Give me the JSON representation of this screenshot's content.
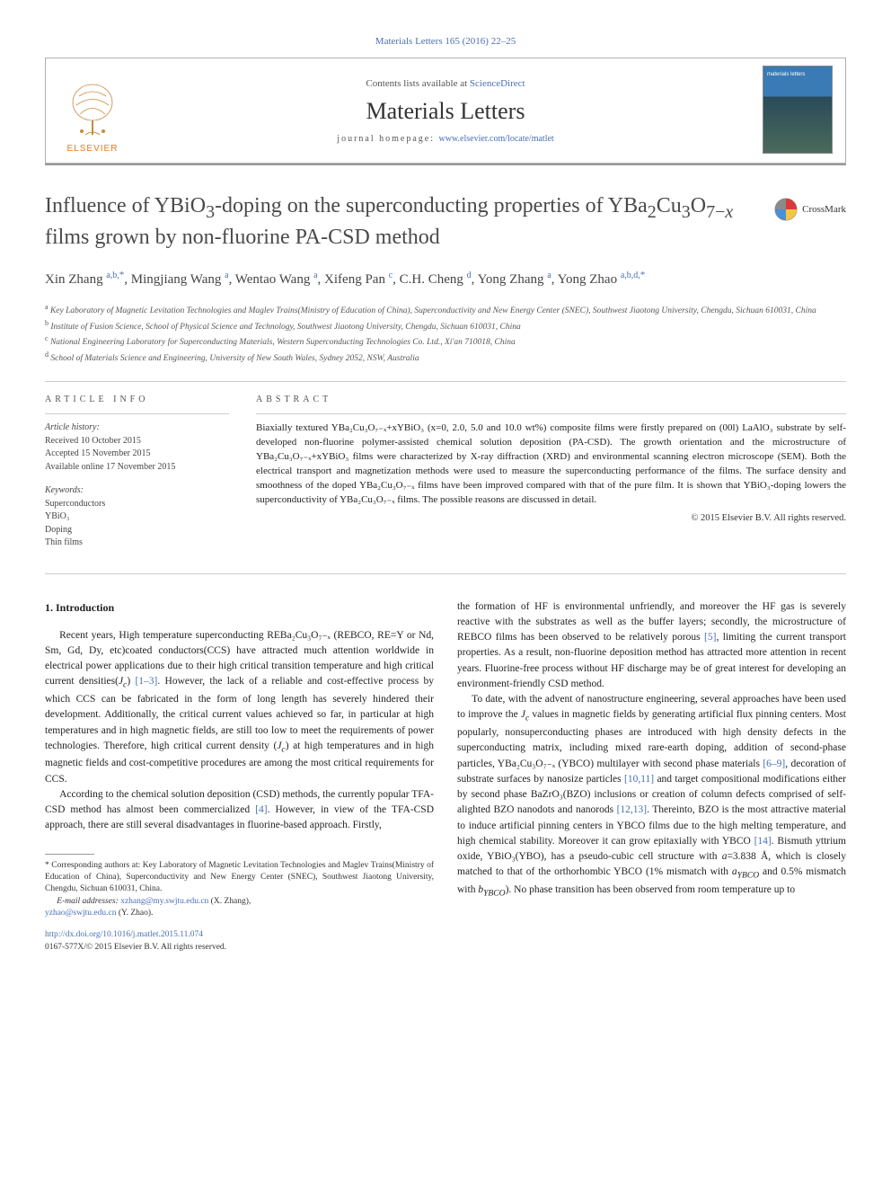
{
  "topnav": "Materials Letters 165 (2016) 22–25",
  "banner": {
    "contents_prefix": "Contents lists available at ",
    "contents_link": "ScienceDirect",
    "journal_name": "Materials Letters",
    "homepage_prefix": "journal homepage: ",
    "homepage_link": "www.elsevier.com/locate/matlet",
    "publisher_label": "ELSEVIER"
  },
  "crossmark_label": "CrossMark",
  "title_a": "Influence of YBiO",
  "title_b": "-doping on the superconducting properties of YBa",
  "title_c": "Cu",
  "title_d": "O",
  "title_e": " films grown by non-fluorine PA-CSD method",
  "authors_html": "Xin Zhang <span class='sup'>a,b,</span><span class='star'>*</span>, Mingjiang Wang <span class='sup'>a</span>, Wentao Wang <span class='sup'>a</span>, Xifeng Pan <span class='sup'>c</span>, C.H. Cheng <span class='sup'>d</span>, Yong Zhang <span class='sup'>a</span>, Yong Zhao <span class='sup'>a,b,d,</span><span class='star'>*</span>",
  "affiliations": {
    "a": "Key Laboratory of Magnetic Levitation Technologies and Maglev Trains(Ministry of Education of China), Superconductivity and New Energy Center (SNEC), Southwest Jiaotong University, Chengdu, Sichuan 610031, China",
    "b": "Institute of Fusion Science, School of Physical Science and Technology, Southwest Jiaotong University, Chengdu, Sichuan 610031, China",
    "c": "National Engineering Laboratory for Superconducting Materials, Western Superconducting Technologies Co. Ltd., Xi'an 710018, China",
    "d": "School of Materials Science and Engineering, University of New South Wales, Sydney 2052, NSW, Australia"
  },
  "info": {
    "label": "article info",
    "history_heading": "Article history:",
    "received": "Received 10 October 2015",
    "accepted": "Accepted 15 November 2015",
    "online": "Available online 17 November 2015",
    "keywords_heading": "Keywords:",
    "kw1": "Superconductors",
    "kw2": "YBiO₃",
    "kw3": "Doping",
    "kw4": "Thin films"
  },
  "abstract": {
    "label": "abstract",
    "text": "Biaxially textured YBa₂Cu₃O₇₋ₓ+xYBiO₃ (x=0, 2.0, 5.0 and 10.0 wt%) composite films were firstly prepared on (00l) LaAlO₃ substrate by self-developed non-fluorine polymer-assisted chemical solution deposition (PA-CSD). The growth orientation and the microstructure of YBa₂Cu₃O₇₋ₓ+xYBiO₃ films were characterized by X-ray diffraction (XRD) and environmental scanning electron microscope (SEM). Both the electrical transport and magnetization methods were used to measure the superconducting performance of the films. The surface density and smoothness of the doped YBa₂Cu₃O₇₋ₓ films have been improved compared with that of the pure film. It is shown that YBiO₃-doping lowers the superconductivity of YBa₂Cu₃O₇₋ₓ films. The possible reasons are discussed in detail.",
    "copyright": "© 2015 Elsevier B.V. All rights reserved."
  },
  "intro_heading": "1.  Introduction",
  "colL_p1a": "Recent years, High temperature superconducting REBa₂Cu₃O₇₋ₓ (REBCO, RE=Y or Nd, Sm, Gd, Dy, etc)coated conductors(CCS) have attracted much attention worldwide in electrical power applications due to their high critical transition temperature and high critical current densities(",
  "colL_p1b": ") ",
  "colL_p1_ref": "[1–3]",
  "colL_p1c": ". However, the lack of a reliable and cost-effective process by which CCS can be fabricated in the form of long length has severely hindered their development. Additionally, the critical current values achieved so far, in particular at high temperatures and in high magnetic fields, are still too low to meet the requirements of power technologies. Therefore, high critical current density (",
  "colL_p1d": ") at high temperatures and in high magnetic fields and cost-competitive procedures are among the most critical requirements for CCS.",
  "colL_p2a": "According to the chemical solution deposition (CSD) methods, the currently popular TFA-CSD method has almost been commercialized ",
  "colL_p2_ref": "[4]",
  "colL_p2b": ". However, in view of the TFA-CSD approach, there are still several disadvantages in fluorine-based approach. Firstly,",
  "colR_p1a": "the formation of HF is environmental unfriendly, and moreover the HF gas is severely reactive with the substrates as well as the buffer layers; secondly, the microstructure of REBCO films has been observed to be relatively porous ",
  "colR_p1_ref": "[5]",
  "colR_p1b": ", limiting the current transport properties. As a result, non-fluorine deposition method has attracted more attention in recent years. Fluorine-free process without HF discharge may be of great interest for developing an environment-friendly CSD method.",
  "colR_p2a": "To date, with the advent of nanostructure engineering, several approaches have been used to improve the ",
  "colR_p2b": " values in magnetic fields by generating artificial flux pinning centers. Most popularly, nonsuperconducting phases are introduced with high density defects in the superconducting matrix, including mixed rare-earth doping, addition of second-phase particles, YBa₂Cu₃O₇₋ₓ (YBCO) multilayer with second phase materials ",
  "colR_p2_ref1": "[6–9]",
  "colR_p2c": ", decoration of substrate surfaces by nanosize particles ",
  "colR_p2_ref2": "[10,11]",
  "colR_p2d": " and target compositional modifications either by second phase BaZrO₃(BZO) inclusions or creation of column defects comprised of self-alighted BZO nanodots and nanorods ",
  "colR_p2_ref3": "[12,13]",
  "colR_p2e": ". Thereinto, BZO is the most attractive material to induce artificial pinning centers in YBCO films due to the high melting temperature, and high chemical stability. Moreover it can grow epitaxially with YBCO ",
  "colR_p2_ref4": "[14]",
  "colR_p2f": ". Bismuth yttrium oxide, YBiO₃(YBO), has a pseudo-cubic cell structure with ",
  "colR_p2g": "=3.838 Å, which is closely matched to that of the orthorhombic YBCO (1% mismatch with ",
  "colR_p2h": " and 0.5% mismatch with ",
  "colR_p2i": "). No phase transition has been observed from room temperature up to",
  "footnote": {
    "corr": "Corresponding authors at: Key Laboratory of Magnetic Levitation Technologies and Maglev Trains(Ministry of Education of China), Superconductivity and New Energy Center (SNEC), Southwest Jiaotong University, Chengdu, Sichuan 610031, China.",
    "email_label": "E-mail addresses:",
    "email1": "xzhang@my.swjtu.edu.cn",
    "email1_name": " (X. Zhang),",
    "email2": "yzhao@swjtu.edu.cn",
    "email2_name": " (Y. Zhao)."
  },
  "doi": {
    "link": "http://dx.doi.org/10.1016/j.matlet.2015.11.074",
    "issn": "0167-577X/© 2015 Elsevier B.V. All rights reserved."
  },
  "colors": {
    "link": "#4a6fb5",
    "orange": "#e67a1a",
    "text": "#222222",
    "border": "#b0b0b0"
  }
}
